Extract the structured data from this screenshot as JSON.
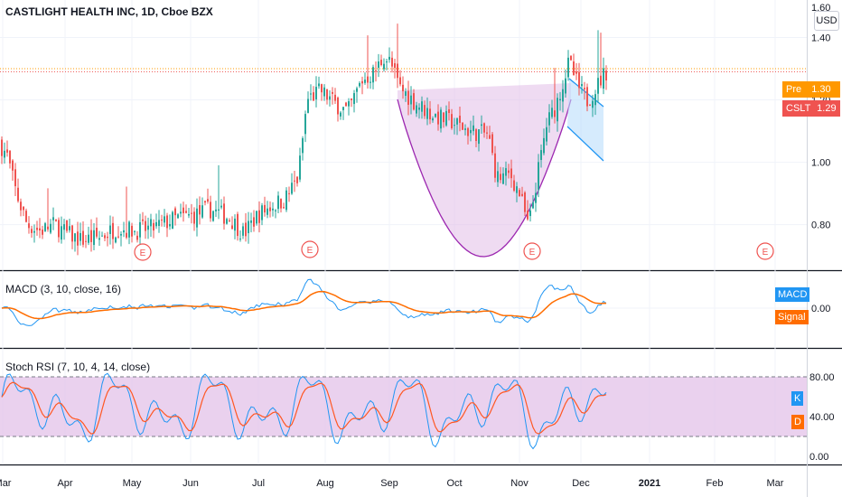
{
  "header": {
    "title": "CASTLIGHT HEALTH INC, 1D, Cboe BZX"
  },
  "currency_button": "USD",
  "price_tags": {
    "pre": {
      "label": "Pre",
      "value": "1.30",
      "color": "#ff9800"
    },
    "last": {
      "label": "CSLT",
      "value": "1.29",
      "color": "#ef5350"
    }
  },
  "macd": {
    "label": "MACD (3, 10, close, 16)",
    "tag_macd": "MACD",
    "tag_signal": "Signal",
    "axis_value": "0.00"
  },
  "stoch": {
    "label": "Stoch RSI (7, 10, 4, 14, close)",
    "tag_k": "K",
    "tag_d": "D"
  },
  "earnings_marker": "E",
  "chart_data": {
    "type": "candlestick",
    "price_axis_ticks": [
      "1.40",
      "1.20",
      "1.00",
      "0.80"
    ],
    "price_top_tick": "1.60",
    "ylim": [
      0.66,
      1.52
    ],
    "x_axis_labels": [
      "Mar",
      "Apr",
      "May",
      "Jun",
      "Jul",
      "Aug",
      "Sep",
      "Oct",
      "Nov",
      "Dec",
      "2021",
      "Feb",
      "Mar"
    ],
    "stoch_axis_ticks": [
      "80.00",
      "40.00",
      "0.00"
    ],
    "pre_price": 1.3,
    "last_price": 1.29,
    "patterns": [
      "cup (purple arc, Sep–Nov)",
      "bull flag (blue channel, Dec)"
    ],
    "colors": {
      "up": "#26a69a",
      "down": "#ef5350",
      "macd": "#2196f3",
      "signal": "#ff6d00",
      "k": "#2196f3",
      "d": "#ff5722",
      "band": "#e1bee7"
    }
  }
}
